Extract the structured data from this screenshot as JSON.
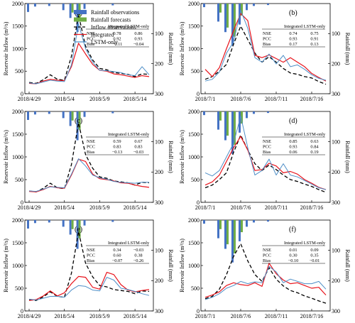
{
  "legend": [
    {
      "label": "Rainfall observations",
      "color": "#4472C4",
      "kind": "bar"
    },
    {
      "label": "Rainfall forecasts",
      "color": "#70AD47",
      "kind": "bar"
    },
    {
      "label": "Inflow observations",
      "color": "#000000",
      "kind": "dash"
    },
    {
      "label": "Integrated",
      "color": "#E8141C",
      "kind": "line"
    },
    {
      "label": "LSTM-only",
      "color": "#4F8FC7",
      "kind": "line"
    }
  ],
  "chart_data": [
    {
      "type": "line",
      "panel_label": "(a)",
      "ylabel": "Reservoir Inflow (m³/s)",
      "y2label": "Rainfall (mm)",
      "ylim": [
        0,
        2000
      ],
      "yticks": [
        0,
        500,
        1000,
        1500,
        2000
      ],
      "y2lim": [
        300,
        0
      ],
      "y2ticks": [
        100,
        200,
        300
      ],
      "xticklabels": [
        "2018/4/29",
        "2018/5/4",
        "2018/5/9",
        "2018/5/14"
      ],
      "xtick_index": [
        0,
        5,
        10,
        15
      ],
      "series": [
        {
          "name": "Inflow observations",
          "values": [
            250,
            230,
            310,
            420,
            320,
            300,
            830,
            1750,
            1050,
            750,
            560,
            530,
            470,
            450,
            430,
            380,
            440,
            430
          ]
        },
        {
          "name": "Integrated",
          "values": [
            230,
            220,
            280,
            320,
            300,
            290,
            600,
            1120,
            880,
            650,
            520,
            500,
            440,
            420,
            390,
            360,
            400,
            380
          ]
        },
        {
          "name": "LSTM-only",
          "values": [
            240,
            220,
            260,
            300,
            280,
            270,
            640,
            1550,
            1000,
            700,
            520,
            510,
            490,
            470,
            420,
            400,
            600,
            420
          ]
        }
      ],
      "rain_obs": [
        28,
        10,
        0,
        8,
        0,
        22,
        48,
        95,
        18,
        0,
        0,
        0,
        6,
        0,
        0,
        0,
        0,
        0
      ],
      "rain_fc": [
        0,
        0,
        0,
        0,
        0,
        0,
        30,
        60,
        0,
        0,
        0,
        0,
        0,
        0,
        0,
        0,
        0,
        0
      ],
      "stats": {
        "headers": [
          "",
          "Integrated",
          "LSTM-only"
        ],
        "rows": [
          [
            "NSE",
            "0.78",
            "0.86"
          ],
          [
            "PCC",
            "0.92",
            "0.93"
          ],
          [
            "Bias",
            "−0.11",
            "−0.04"
          ]
        ]
      }
    },
    {
      "type": "line",
      "panel_label": "(b)",
      "ylabel": "Reservoir Inflow (m³/s)",
      "y2label": "Rainfall (mm)",
      "ylim": [
        0,
        2000
      ],
      "yticks": [
        0,
        500,
        1000,
        1500,
        2000
      ],
      "y2lim": [
        300,
        0
      ],
      "y2ticks": [
        100,
        200,
        300
      ],
      "xticklabels": [
        "2018/7/1",
        "2018/7/6",
        "2018/7/11",
        "2018/7/16"
      ],
      "xtick_index": [
        0,
        5,
        10,
        15
      ],
      "series": [
        {
          "name": "Inflow observations",
          "values": [
            320,
            380,
            500,
            650,
            1100,
            1500,
            1200,
            900,
            700,
            820,
            700,
            560,
            460,
            430,
            380,
            350,
            270,
            210
          ]
        },
        {
          "name": "Integrated",
          "values": [
            540,
            380,
            580,
            1000,
            1400,
            1780,
            1620,
            850,
            800,
            860,
            780,
            700,
            800,
            700,
            600,
            450,
            360,
            280
          ]
        },
        {
          "name": "LSTM-only",
          "values": [
            280,
            320,
            480,
            900,
            1150,
            1850,
            1450,
            800,
            700,
            880,
            660,
            850,
            600,
            640,
            540,
            420,
            340,
            300
          ]
        }
      ],
      "rain_obs": [
        12,
        0,
        60,
        95,
        140,
        70,
        22,
        8,
        0,
        5,
        0,
        0,
        0,
        0,
        0,
        0,
        0,
        0
      ],
      "rain_fc": [
        0,
        0,
        30,
        80,
        110,
        40,
        0,
        0,
        0,
        0,
        0,
        0,
        0,
        0,
        0,
        0,
        0,
        0
      ],
      "stats": {
        "headers": [
          "",
          "Integrated",
          "LSTM-only"
        ],
        "rows": [
          [
            "NSE",
            "0.74",
            "0.75"
          ],
          [
            "PCC",
            "0.93",
            "0.91"
          ],
          [
            "Bias",
            "0.17",
            "0.13"
          ]
        ]
      }
    },
    {
      "type": "line",
      "panel_label": "(c)",
      "ylabel": "Reservoir Inflow (m³/s)",
      "y2label": "Rainfall (mm)",
      "ylim": [
        0,
        2000
      ],
      "yticks": [
        0,
        500,
        1000,
        1500,
        2000
      ],
      "y2lim": [
        300,
        0
      ],
      "y2ticks": [
        100,
        200,
        300
      ],
      "xticklabels": [
        "2018/4/29",
        "2018/5/4",
        "2018/5/9",
        "2018/5/14"
      ],
      "xtick_index": [
        0,
        5,
        10,
        15
      ],
      "series": [
        {
          "name": "Inflow observations",
          "values": [
            250,
            230,
            310,
            420,
            320,
            300,
            830,
            1750,
            1050,
            750,
            560,
            530,
            470,
            450,
            430,
            380,
            440,
            430
          ]
        },
        {
          "name": "Integrated",
          "values": [
            240,
            230,
            280,
            350,
            320,
            310,
            600,
            950,
            900,
            620,
            520,
            500,
            470,
            430,
            420,
            380,
            350,
            330
          ]
        },
        {
          "name": "LSTM-only",
          "values": [
            250,
            240,
            290,
            340,
            330,
            320,
            620,
            960,
            800,
            600,
            540,
            510,
            460,
            440,
            430,
            420,
            440,
            440
          ]
        }
      ],
      "rain_obs": [
        28,
        10,
        0,
        8,
        0,
        22,
        48,
        95,
        18,
        0,
        0,
        0,
        6,
        0,
        0,
        0,
        0,
        0
      ],
      "rain_fc": [
        0,
        0,
        0,
        0,
        0,
        0,
        30,
        60,
        0,
        0,
        0,
        0,
        0,
        0,
        0,
        0,
        0,
        0
      ],
      "stats": {
        "headers": [
          "",
          "Integrated",
          "LSTM-only"
        ],
        "rows": [
          [
            "NSE",
            "0.59",
            "0.67"
          ],
          [
            "PCC",
            "0.83",
            "0.83"
          ],
          [
            "Bias",
            "−0.13",
            "−0.03"
          ]
        ]
      }
    },
    {
      "type": "line",
      "panel_label": "(d)",
      "ylabel": "Reservoir Inflow (m³/s)",
      "y2label": "Rainfall (mm)",
      "ylim": [
        0,
        2000
      ],
      "yticks": [
        0,
        500,
        1000,
        1500,
        2000
      ],
      "y2lim": [
        300,
        0
      ],
      "y2ticks": [
        100,
        200,
        300
      ],
      "xticklabels": [
        "2018/7/1",
        "2018/7/6",
        "2018/7/11",
        "2018/7/16"
      ],
      "xtick_index": [
        0,
        5,
        10,
        15
      ],
      "series": [
        {
          "name": "Inflow observations",
          "values": [
            320,
            380,
            500,
            650,
            1100,
            1480,
            1150,
            850,
            700,
            820,
            720,
            600,
            500,
            460,
            400,
            350,
            280,
            220
          ]
        },
        {
          "name": "Integrated",
          "values": [
            380,
            450,
            600,
            900,
            1200,
            1450,
            1150,
            700,
            720,
            860,
            800,
            650,
            680,
            620,
            500,
            420,
            330,
            280
          ]
        },
        {
          "name": "LSTM-only",
          "values": [
            650,
            580,
            700,
            1000,
            1300,
            1900,
            1200,
            600,
            700,
            950,
            600,
            850,
            600,
            560,
            480,
            400,
            320,
            280
          ]
        }
      ],
      "rain_obs": [
        12,
        0,
        60,
        95,
        140,
        70,
        22,
        8,
        0,
        5,
        0,
        0,
        0,
        0,
        0,
        0,
        0,
        0
      ],
      "rain_fc": [
        0,
        0,
        30,
        80,
        110,
        40,
        0,
        0,
        0,
        0,
        0,
        0,
        0,
        0,
        0,
        0,
        0,
        0
      ],
      "stats": {
        "headers": [
          "",
          "Integrated",
          "LSTM-only"
        ],
        "rows": [
          [
            "NSE",
            "0.85",
            "0.63"
          ],
          [
            "PCC",
            "0.93",
            "0.84"
          ],
          [
            "Bias",
            "0.06",
            "0.19"
          ]
        ]
      }
    },
    {
      "type": "line",
      "panel_label": "(e)",
      "ylabel": "Reservoir Inflow (m³/s)",
      "y2label": "Rainfall (mm)",
      "ylim": [
        0,
        2000
      ],
      "yticks": [
        0,
        500,
        1000,
        1500,
        2000
      ],
      "y2lim": [
        300,
        0
      ],
      "y2ticks": [
        100,
        200,
        300
      ],
      "xticklabels": [
        "2018/4/29",
        "2018/5/4",
        "2018/5/9",
        "2018/5/14"
      ],
      "xtick_index": [
        0,
        5,
        10,
        15
      ],
      "series": [
        {
          "name": "Inflow observations",
          "values": [
            250,
            230,
            310,
            420,
            320,
            300,
            830,
            1750,
            1050,
            750,
            560,
            530,
            470,
            450,
            430,
            380,
            440,
            430
          ]
        },
        {
          "name": "Integrated",
          "values": [
            230,
            250,
            330,
            440,
            330,
            400,
            600,
            760,
            740,
            520,
            480,
            850,
            800,
            580,
            460,
            420,
            450,
            470
          ]
        },
        {
          "name": "LSTM-only",
          "values": [
            260,
            240,
            280,
            320,
            320,
            300,
            460,
            560,
            540,
            460,
            440,
            740,
            680,
            500,
            470,
            430,
            380,
            340
          ]
        }
      ],
      "rain_obs": [
        28,
        10,
        0,
        8,
        0,
        22,
        48,
        95,
        18,
        0,
        0,
        0,
        6,
        0,
        0,
        0,
        0,
        0
      ],
      "rain_fc": [
        0,
        0,
        0,
        0,
        0,
        0,
        30,
        60,
        0,
        0,
        0,
        0,
        0,
        0,
        0,
        0,
        0,
        0
      ],
      "stats": {
        "headers": [
          "",
          "Integrated",
          "LSTM-only"
        ],
        "rows": [
          [
            "NSE",
            "0.34",
            "−0.03"
          ],
          [
            "PCC",
            "0.60",
            "0.38"
          ],
          [
            "Bias",
            "−0.07",
            "−0.26"
          ]
        ]
      }
    },
    {
      "type": "line",
      "panel_label": "(f)",
      "ylabel": "Reservoir Inflow (m³/s)",
      "y2label": "Rainfall (mm)",
      "ylim": [
        0,
        2000
      ],
      "yticks": [
        0,
        500,
        1000,
        1500,
        2000
      ],
      "y2lim": [
        300,
        0
      ],
      "y2ticks": [
        100,
        200,
        300
      ],
      "xticklabels": [
        "2018/7/1",
        "2018/7/6",
        "2018/7/11",
        "2018/7/16"
      ],
      "xtick_index": [
        0,
        5,
        10,
        15
      ],
      "series": [
        {
          "name": "Inflow observations",
          "values": [
            270,
            320,
            480,
            800,
            1200,
            1480,
            1100,
            800,
            650,
            950,
            700,
            550,
            450,
            400,
            330,
            280,
            220,
            170
          ]
        },
        {
          "name": "Integrated",
          "values": [
            300,
            350,
            420,
            560,
            620,
            580,
            560,
            620,
            540,
            1050,
            820,
            680,
            600,
            620,
            560,
            500,
            520,
            350
          ]
        },
        {
          "name": "LSTM-only",
          "values": [
            250,
            300,
            380,
            500,
            560,
            650,
            600,
            640,
            620,
            980,
            860,
            620,
            700,
            650,
            600,
            600,
            650,
            480
          ]
        }
      ],
      "rain_obs": [
        12,
        0,
        60,
        95,
        140,
        70,
        22,
        8,
        0,
        5,
        0,
        0,
        0,
        0,
        0,
        0,
        0,
        0
      ],
      "rain_fc": [
        0,
        0,
        30,
        80,
        110,
        40,
        0,
        0,
        0,
        0,
        0,
        0,
        0,
        0,
        0,
        0,
        0,
        0
      ],
      "stats": {
        "headers": [
          "",
          "Integrated",
          "LSTM-only"
        ],
        "rows": [
          [
            "NSE",
            "0.01",
            "0.09"
          ],
          [
            "PCC",
            "0.30",
            "0.35"
          ],
          [
            "Bias",
            "−0.10",
            "−0.01"
          ]
        ]
      }
    }
  ]
}
